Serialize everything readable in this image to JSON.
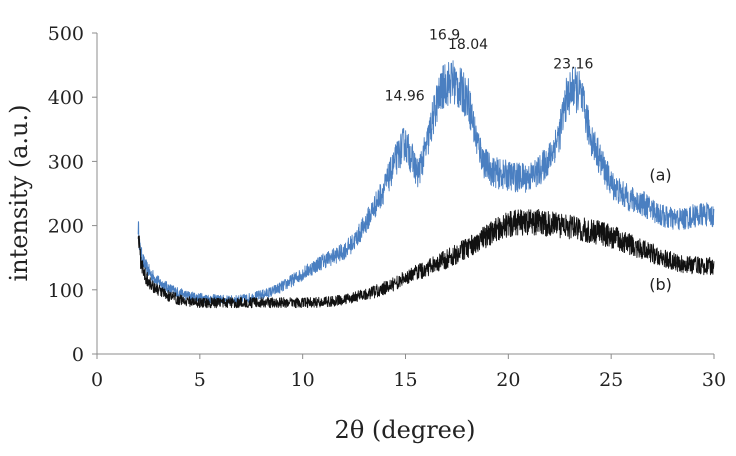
{
  "chart_data": {
    "type": "line",
    "xlabel": "2θ (degree)",
    "ylabel": "intensity (a.u.)",
    "xlim": [
      0,
      30
    ],
    "ylim": [
      0,
      500
    ],
    "x_ticks": [
      0,
      5,
      10,
      15,
      20,
      25,
      30
    ],
    "y_ticks": [
      0,
      100,
      200,
      300,
      400,
      500
    ],
    "grid": false,
    "series": [
      {
        "name": "(a)",
        "color": "#4a7fc1",
        "x": [
          2,
          2.1,
          2.3,
          2.6,
          3,
          3.5,
          4,
          4.5,
          5,
          5.5,
          6,
          6.5,
          7,
          7.5,
          8,
          8.5,
          9,
          9.5,
          10,
          10.5,
          11,
          11.5,
          12,
          12.5,
          13,
          13.5,
          14,
          14.5,
          14.96,
          15.3,
          15.6,
          16,
          16.5,
          16.9,
          17.3,
          17.7,
          18.04,
          18.4,
          18.8,
          19.2,
          19.6,
          20,
          20.5,
          21,
          21.5,
          22,
          22.5,
          22.8,
          23.16,
          23.5,
          24,
          24.5,
          25,
          25.5,
          26,
          26.5,
          27,
          27.5,
          28,
          28.5,
          29,
          29.5,
          30
        ],
        "y": [
          200,
          160,
          140,
          125,
          112,
          102,
          95,
          90,
          88,
          86,
          85,
          84,
          85,
          88,
          92,
          97,
          105,
          115,
          125,
          135,
          145,
          152,
          160,
          175,
          200,
          230,
          260,
          300,
          330,
          305,
          280,
          320,
          390,
          420,
          425,
          410,
          400,
          340,
          300,
          285,
          280,
          278,
          275,
          275,
          285,
          305,
          345,
          395,
          415,
          405,
          340,
          300,
          265,
          250,
          240,
          235,
          225,
          215,
          210,
          210,
          215,
          218,
          215
        ]
      },
      {
        "name": "(b)",
        "color": "#111111",
        "x": [
          2,
          2.1,
          2.3,
          2.6,
          3,
          3.5,
          4,
          4.5,
          5,
          5.5,
          6,
          6.5,
          7,
          7.5,
          8,
          8.5,
          9,
          9.5,
          10,
          10.5,
          11,
          11.5,
          12,
          12.5,
          13,
          13.5,
          14,
          14.5,
          15,
          15.5,
          16,
          16.5,
          17,
          17.5,
          18,
          18.5,
          19,
          19.5,
          20,
          20.5,
          21,
          21.5,
          22,
          22.5,
          23,
          23.5,
          24,
          24.5,
          25,
          25.5,
          26,
          26.5,
          27,
          27.5,
          28,
          28.5,
          29,
          29.5,
          30
        ],
        "y": [
          195,
          150,
          125,
          110,
          98,
          90,
          85,
          82,
          80,
          80,
          80,
          80,
          80,
          80,
          80,
          80,
          80,
          80,
          80,
          80,
          81,
          82,
          85,
          88,
          92,
          97,
          103,
          110,
          118,
          126,
          133,
          140,
          148,
          156,
          165,
          175,
          185,
          195,
          202,
          205,
          205,
          205,
          203,
          200,
          198,
          195,
          192,
          188,
          183,
          177,
          170,
          163,
          157,
          150,
          145,
          140,
          138,
          137,
          137
        ]
      }
    ],
    "annotations": [
      {
        "text": "14.96",
        "x": 14.96,
        "y": 395
      },
      {
        "text": "16.9",
        "x": 16.9,
        "y": 490
      },
      {
        "text": "18.04",
        "x": 18.04,
        "y": 475
      },
      {
        "text": "23.16",
        "x": 23.16,
        "y": 445
      }
    ],
    "curve_labels": [
      {
        "text": "(a)",
        "x": 27.4,
        "y": 270
      },
      {
        "text": "(b)",
        "x": 27.4,
        "y": 100
      }
    ]
  }
}
